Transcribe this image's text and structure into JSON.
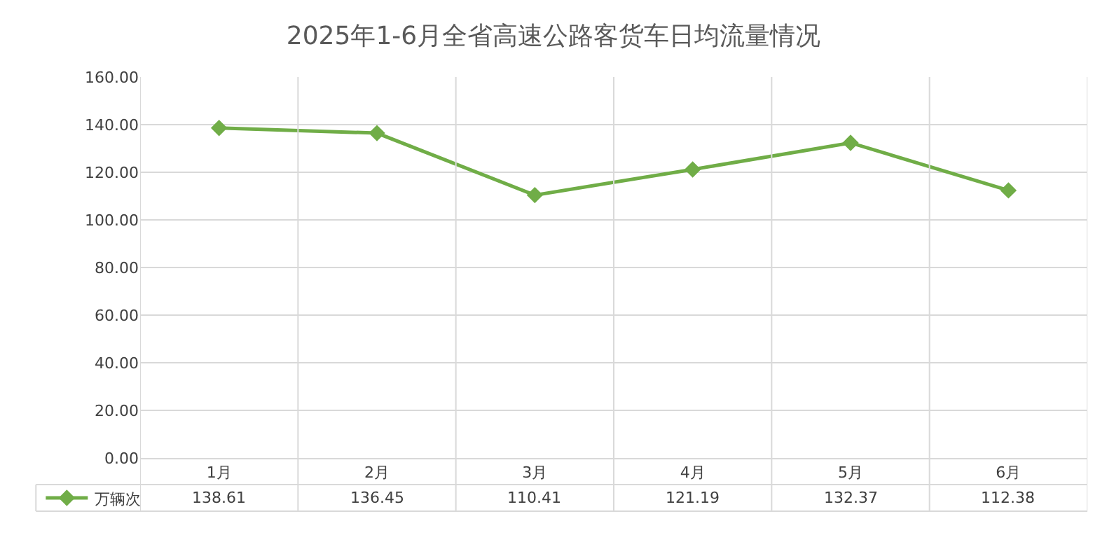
{
  "chart_data": {
    "type": "line",
    "title": "2025年1-6月全省高速公路客货车日均流量情况",
    "categories": [
      "1月",
      "2月",
      "3月",
      "4月",
      "5月",
      "6月"
    ],
    "series": [
      {
        "name": "万辆次",
        "color": "#70ad47",
        "values": [
          138.61,
          136.45,
          110.41,
          121.19,
          132.37,
          112.38
        ]
      }
    ],
    "ylim": [
      0,
      160
    ],
    "yticks": [
      {
        "value": 0,
        "label": "0.00"
      },
      {
        "value": 20,
        "label": "20.00"
      },
      {
        "value": 40,
        "label": "40.00"
      },
      {
        "value": 60,
        "label": "60.00"
      },
      {
        "value": 80,
        "label": "80.00"
      },
      {
        "value": 100,
        "label": "100.00"
      },
      {
        "value": 120,
        "label": "120.00"
      },
      {
        "value": 140,
        "label": "140.00"
      },
      {
        "value": 160,
        "label": "160.00"
      }
    ],
    "grid": true,
    "marker": "diamond",
    "line_style": "solid",
    "legend": "bottom left",
    "data_labels": true
  }
}
